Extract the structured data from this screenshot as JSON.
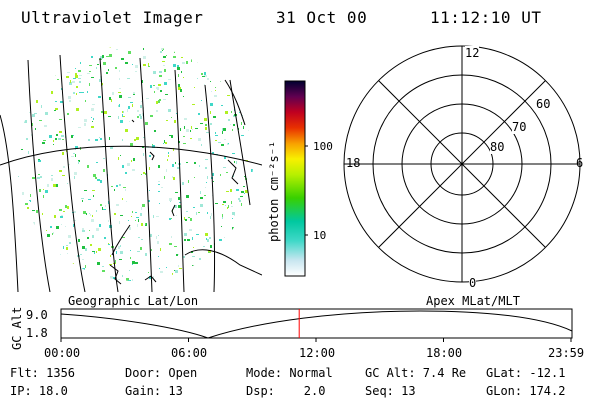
{
  "header": {
    "instrument": "Ultraviolet Imager",
    "date": "31 Oct 00",
    "time": "11:12:10 UT"
  },
  "colorbar": {
    "unit_label": "photon cm⁻²s⁻¹",
    "ticks": [
      "100",
      "10"
    ]
  },
  "polar_plot": {
    "mlt_labels": [
      "12",
      "18",
      "6",
      "0"
    ],
    "lat_labels": [
      "60",
      "70",
      "80"
    ]
  },
  "orbit_panel": {
    "left_title": "Geographic Lat/Lon",
    "right_title": "Apex MLat/MLT",
    "ylabel": "GC Alt",
    "y_ticks": [
      "9.0",
      "1.8"
    ],
    "x_ticks": [
      "00:00",
      "06:00",
      "12:00",
      "18:00",
      "23:59"
    ],
    "marker_time": "11:12",
    "marker_color": "#ff0000"
  },
  "status": {
    "flt": "Flt: 1356",
    "door": "Door: Open",
    "mode": "Mode: Normal",
    "gc_alt": "GC Alt: 7.4 Re",
    "glat": "GLat: -12.1",
    "ip": "IP: 18.0",
    "gain": "Gain: 13",
    "dsp": "Dsp:    2.0",
    "seq": "Seq: 13",
    "glon": "GLon: 174.2"
  }
}
